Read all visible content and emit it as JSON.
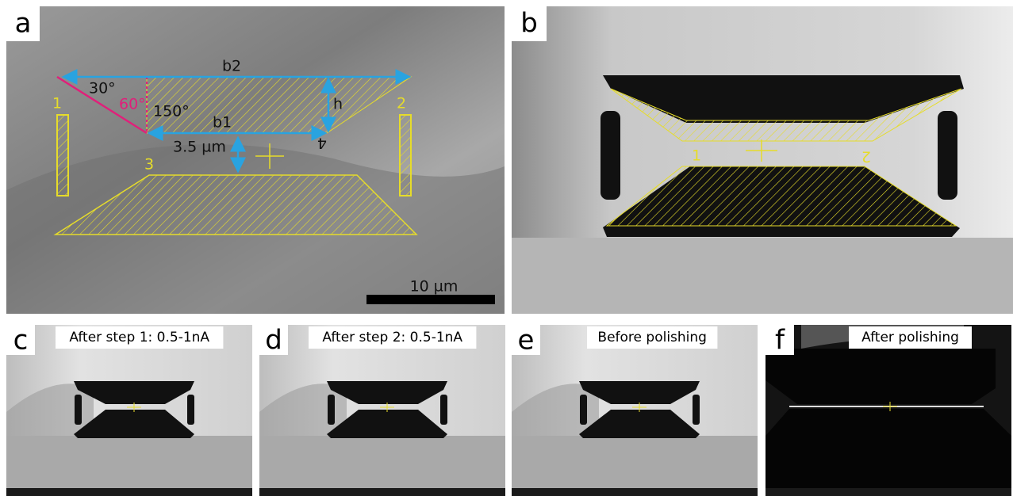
{
  "panel_a": {
    "label": "a",
    "b2": "b2",
    "b1": "b1",
    "h": "h",
    "angle_30": "30°",
    "angle_60": "60°",
    "angle_150": "150°",
    "gap": "3.5 µm",
    "markers": [
      "1",
      "2",
      "3",
      "4"
    ],
    "scale_bar": "10 µm"
  },
  "panel_b": {
    "label": "b",
    "markers": [
      "1",
      "2"
    ]
  },
  "bottom_panels": [
    {
      "label": "c",
      "caption": "After step 1: 0.5-1nA"
    },
    {
      "label": "d",
      "caption": "After step 2: 0.5-1nA"
    },
    {
      "label": "e",
      "caption": "Before polishing"
    },
    {
      "label": "f",
      "caption": "After polishing"
    }
  ]
}
